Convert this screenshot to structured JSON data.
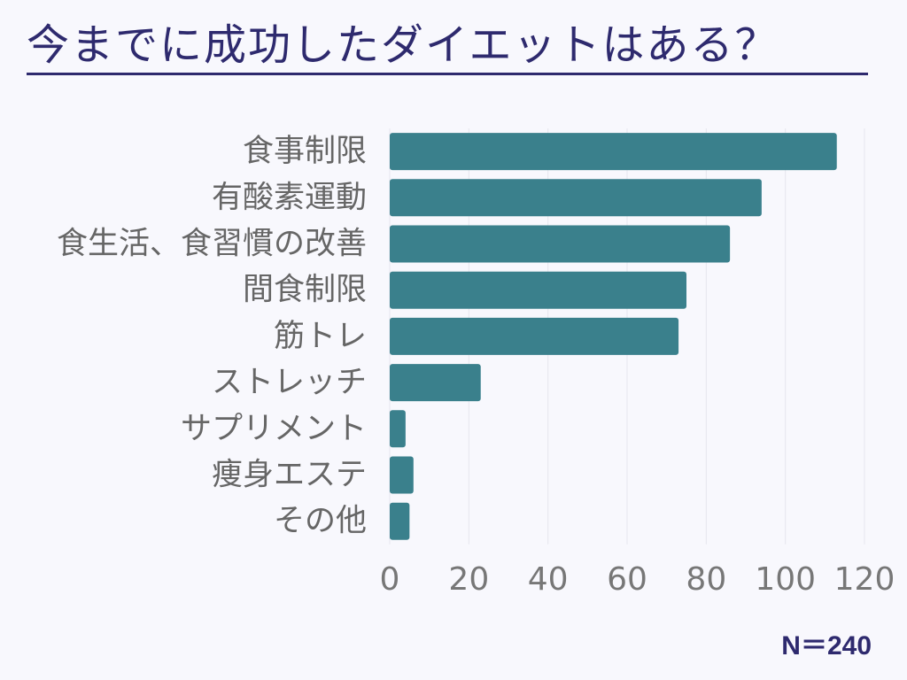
{
  "chart_data": {
    "type": "bar",
    "orientation": "horizontal",
    "title": "今までに成功したダイエットはある？",
    "categories": [
      "食事制限",
      "有酸素運動",
      "食生活、食習慣の改善",
      "間食制限",
      "筋トレ",
      "ストレッチ",
      "サプリメント",
      "痩身エステ",
      "その他"
    ],
    "series": [
      {
        "values": [
          113,
          94,
          86,
          75,
          73,
          23,
          4,
          6,
          5
        ]
      }
    ],
    "xlim": [
      0,
      120
    ],
    "xticks": [
      0,
      20,
      40,
      60,
      80,
      100,
      120
    ],
    "grid": "vertical",
    "bar_color": "#3a808c",
    "annotation": "N＝240"
  },
  "colors": {
    "title": "#2e2a6e",
    "label_text": "#666666",
    "tick_text": "#777777",
    "grid": "#e6e6ee",
    "background": "#f8f8fd"
  }
}
